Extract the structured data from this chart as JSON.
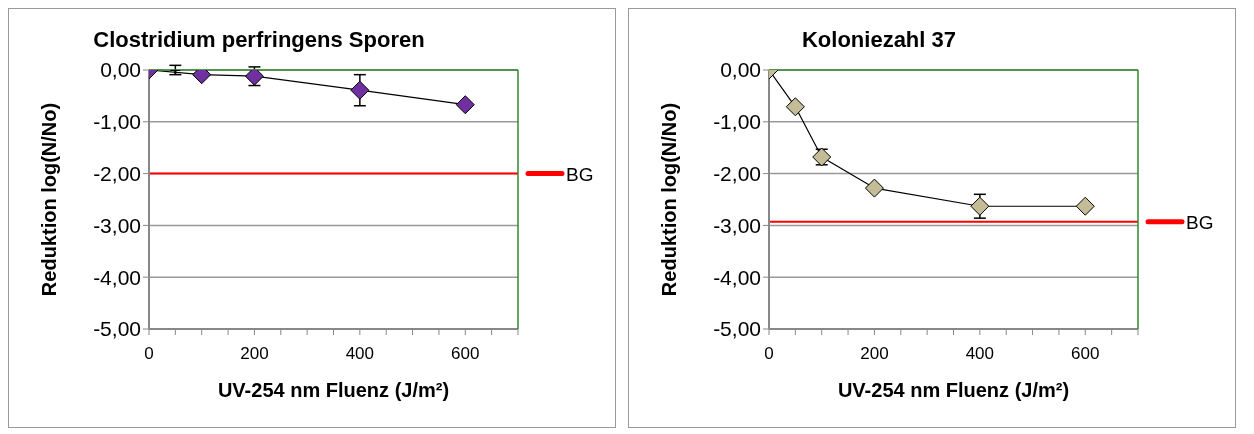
{
  "chart_data": [
    {
      "type": "line",
      "title": "Clostridium perfringens Sporen",
      "xlabel": "UV-254 nm Fluenz (J/m²)",
      "ylabel": "Reduktion log(N/No)",
      "xlim": [
        0,
        700
      ],
      "xticks": [
        0,
        200,
        400,
        600
      ],
      "ylim": [
        -5,
        0
      ],
      "yticks": [
        {
          "value": 0,
          "label": "0,00"
        },
        {
          "value": -1,
          "label": "-1,00"
        },
        {
          "value": -2,
          "label": "-2,00"
        },
        {
          "value": -3,
          "label": "-3,00"
        },
        {
          "value": -4,
          "label": "-4,00"
        },
        {
          "value": -5,
          "label": "-5,00"
        }
      ],
      "grid": "y",
      "legend": "right",
      "marker": "diamond",
      "series": [
        {
          "color": "#7030a0",
          "x": [
            0,
            100,
            200,
            400,
            600
          ],
          "values": [
            0,
            -0.09,
            -0.12,
            -0.39,
            -0.67
          ],
          "errors": [
            null,
            null,
            0.18,
            0.3,
            null
          ]
        },
        {
          "type": "scatter",
          "marker": "cross",
          "color": "#000000",
          "x": [
            50
          ],
          "values": [
            0
          ],
          "errors": [
            0.09
          ]
        }
      ],
      "ref_lines": [
        {
          "axis": "y",
          "value": -2,
          "label": "BG",
          "color": "#ff0000"
        }
      ]
    },
    {
      "type": "line",
      "title": "Koloniezahl 37",
      "xlabel": "UV-254 nm Fluenz (J/m²)",
      "ylabel": "Reduktion log(N/No)",
      "xlim": [
        0,
        700
      ],
      "xticks": [
        0,
        200,
        400,
        600
      ],
      "ylim": [
        -5,
        0
      ],
      "yticks": [
        {
          "value": 0,
          "label": "0,00"
        },
        {
          "value": -1,
          "label": "-1,00"
        },
        {
          "value": -2,
          "label": "-2,00"
        },
        {
          "value": -3,
          "label": "-3,00"
        },
        {
          "value": -4,
          "label": "-4,00"
        },
        {
          "value": -5,
          "label": "-5,00"
        }
      ],
      "grid": "y",
      "legend": "right",
      "marker": "diamond",
      "series": [
        {
          "color": "#c4bc96",
          "x": [
            0,
            50,
            100,
            200,
            400,
            600
          ],
          "values": [
            0,
            -0.71,
            -1.68,
            -2.28,
            -2.63,
            -2.63
          ],
          "errors": [
            null,
            null,
            0.15,
            null,
            0.23,
            null
          ]
        }
      ],
      "ref_lines": [
        {
          "axis": "y",
          "value": -2.93,
          "label": "BG",
          "color": "#ff0000"
        }
      ]
    }
  ]
}
